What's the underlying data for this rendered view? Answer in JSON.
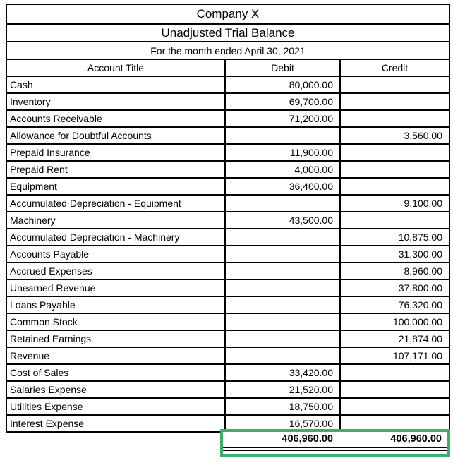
{
  "header": {
    "company": "Company X",
    "report_title": "Unadjusted Trial Balance",
    "period": "For the month ended April 30, 2021"
  },
  "columns": [
    "Account Title",
    "Debit",
    "Credit"
  ],
  "accounts": [
    {
      "title": "Cash",
      "debit": "80,000.00",
      "credit": ""
    },
    {
      "title": "Inventory",
      "debit": "69,700.00",
      "credit": ""
    },
    {
      "title": "Accounts Receivable",
      "debit": "71,200.00",
      "credit": ""
    },
    {
      "title": "Allowance for Doubtful Accounts",
      "debit": "",
      "credit": "3,560.00"
    },
    {
      "title": "Prepaid Insurance",
      "debit": "11,900.00",
      "credit": ""
    },
    {
      "title": "Prepaid Rent",
      "debit": "4,000.00",
      "credit": ""
    },
    {
      "title": "Equipment",
      "debit": "36,400.00",
      "credit": ""
    },
    {
      "title": "Accumulated Depreciation - Equipment",
      "debit": "",
      "credit": "9,100.00"
    },
    {
      "title": "Machinery",
      "debit": "43,500.00",
      "credit": ""
    },
    {
      "title": "Accumulated Depreciation - Machinery",
      "debit": "",
      "credit": "10,875.00"
    },
    {
      "title": "Accounts Payable",
      "debit": "",
      "credit": "31,300.00"
    },
    {
      "title": "Accrued Expenses",
      "debit": "",
      "credit": "8,960.00"
    },
    {
      "title": "Unearned Revenue",
      "debit": "",
      "credit": "37,800.00"
    },
    {
      "title": "Loans Payable",
      "debit": "",
      "credit": "76,320.00"
    },
    {
      "title": "Common Stock",
      "debit": "",
      "credit": "100,000.00"
    },
    {
      "title": "Retained Earnings",
      "debit": "",
      "credit": "21,874.00"
    },
    {
      "title": "Revenue",
      "debit": "",
      "credit": "107,171.00"
    },
    {
      "title": "Cost of Sales",
      "debit": "33,420.00",
      "credit": ""
    },
    {
      "title": "Salaries Expense",
      "debit": "21,520.00",
      "credit": ""
    },
    {
      "title": "Utilities Expense",
      "debit": "18,750.00",
      "credit": ""
    },
    {
      "title": "Interest Expense",
      "debit": "16,570.00",
      "credit": ""
    }
  ],
  "totals": {
    "debit": "406,960.00",
    "credit": "406,960.00"
  },
  "colors": {
    "selection_border": "#3fae6b",
    "grid_border": "#000000",
    "background": "#ffffff"
  }
}
